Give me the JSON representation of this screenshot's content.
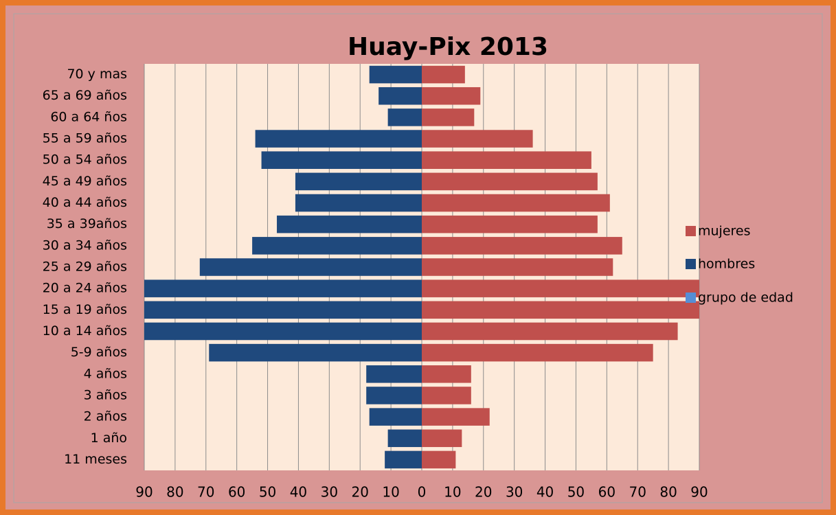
{
  "chart_data": {
    "type": "bar",
    "orientation": "horizontal",
    "title": "Huay-Pix 2013",
    "categories": [
      "70 y mas",
      "65 a 69 años",
      "60 a 64 ños",
      "55 a 59 años",
      "50 a 54 años",
      "45 a 49 años",
      "40 a 44 años",
      "35 a 39años",
      "30 a 34 años",
      "25 a 29 años",
      "20 a 24 años",
      "15 a 19 años",
      "10 a 14 años",
      "5-9 años",
      "4 años",
      "3 años",
      "2 años",
      "1 año",
      "11 meses"
    ],
    "series": [
      {
        "name": "mujeres",
        "color": "#c0504d",
        "values": [
          14,
          19,
          17,
          36,
          55,
          57,
          61,
          57,
          65,
          62,
          90,
          90,
          83,
          75,
          16,
          16,
          22,
          13,
          11
        ]
      },
      {
        "name": "hombres",
        "color": "#1f497d",
        "values": [
          -17,
          -14,
          -11,
          -54,
          -52,
          -41,
          -41,
          -47,
          -55,
          -72,
          -90,
          -90,
          -90,
          -69,
          -18,
          -18,
          -17,
          -11,
          -12
        ]
      },
      {
        "name": "grupo de edad",
        "color": "#558ed5"
      }
    ],
    "xlim": [
      -90,
      90
    ],
    "xticks": [
      {
        "value": -90,
        "label": "90"
      },
      {
        "value": -80,
        "label": "80"
      },
      {
        "value": -70,
        "label": "70"
      },
      {
        "value": -60,
        "label": "60"
      },
      {
        "value": -50,
        "label": "50"
      },
      {
        "value": -40,
        "label": "40"
      },
      {
        "value": -30,
        "label": "30"
      },
      {
        "value": -20,
        "label": "20"
      },
      {
        "value": -10,
        "label": "10"
      },
      0,
      10,
      20,
      30,
      40,
      50,
      60,
      70,
      80,
      90
    ],
    "grid": true,
    "legend": "right"
  }
}
